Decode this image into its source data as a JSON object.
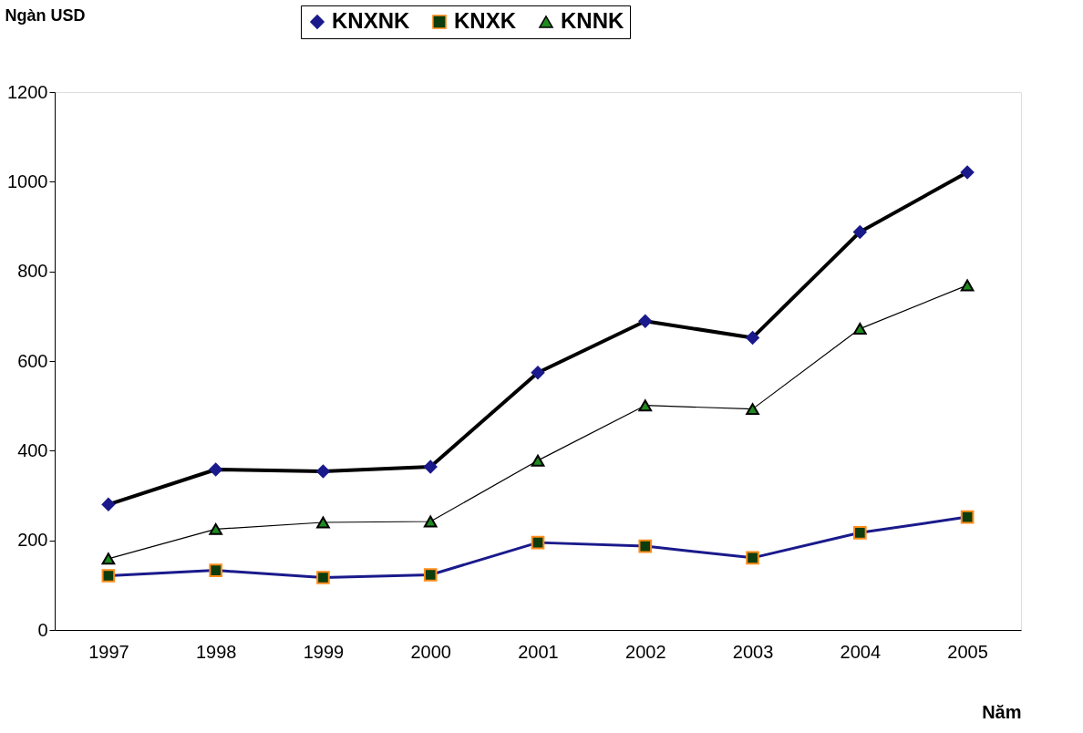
{
  "chart_data": {
    "type": "line",
    "xlabel": "Năm",
    "ylabel": "Ngàn USD",
    "categories": [
      "1997",
      "1998",
      "1999",
      "2000",
      "2001",
      "2002",
      "2003",
      "2004",
      "2005"
    ],
    "series": [
      {
        "name": "KNXNK",
        "color": "#000000",
        "marker": "diamond",
        "values": [
          280,
          358,
          354,
          364,
          574,
          689,
          652,
          888,
          1021
        ]
      },
      {
        "name": "KNXK",
        "color": "#1a1a8c",
        "marker": "square",
        "values": [
          121,
          133,
          117,
          123,
          195,
          187,
          161,
          217,
          252
        ]
      },
      {
        "name": "KNNK",
        "color": "#000000",
        "marker": "triangle",
        "values": [
          159,
          225,
          240,
          242,
          378,
          501,
          493,
          672,
          769
        ]
      }
    ],
    "ylim": [
      0,
      1200
    ],
    "yticks": [
      0,
      200,
      400,
      600,
      800,
      1000,
      1200
    ],
    "grid": false,
    "legend": "top"
  }
}
